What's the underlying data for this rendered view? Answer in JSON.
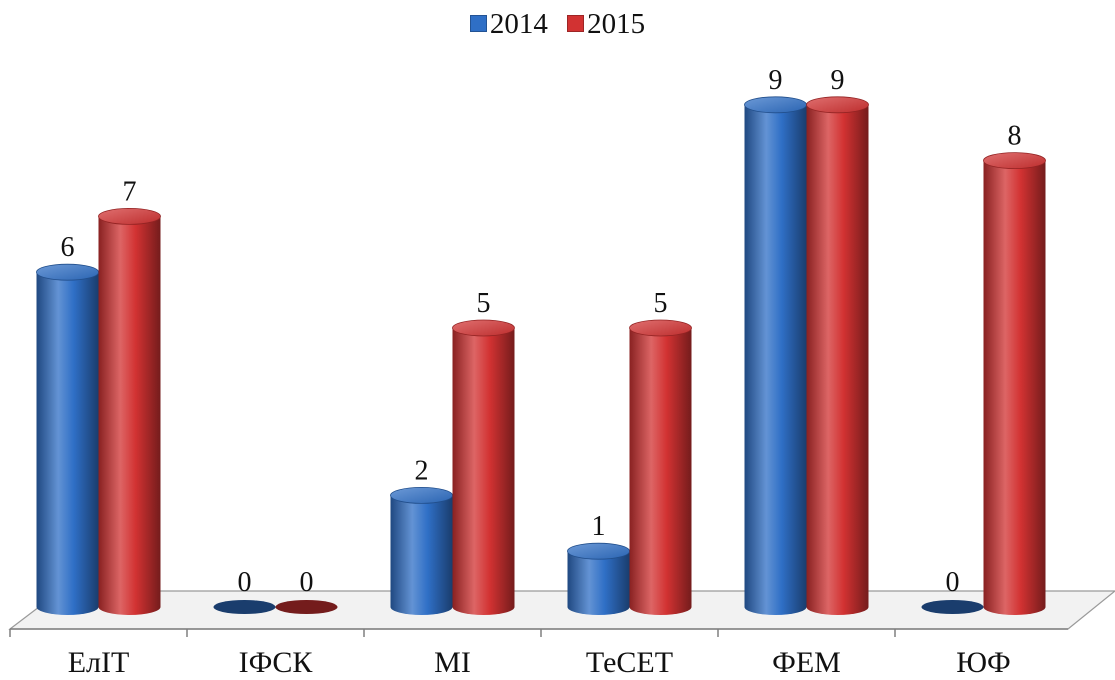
{
  "chart_data": {
    "type": "bar",
    "style": "3d-cylinder",
    "categories": [
      "ЕлІТ",
      "ІФСК",
      "МІ",
      "ТеСЕТ",
      "ФЕМ",
      "ЮФ"
    ],
    "series": [
      {
        "name": "2014",
        "values": [
          6,
          0,
          2,
          1,
          9,
          0
        ],
        "color": "#2f6fc6"
      },
      {
        "name": "2015",
        "values": [
          7,
          0,
          5,
          5,
          9,
          8
        ],
        "color": "#d23232"
      }
    ],
    "ylim": [
      0,
      10
    ],
    "legend_position": "top-center",
    "grid": false,
    "data_labels": true
  }
}
